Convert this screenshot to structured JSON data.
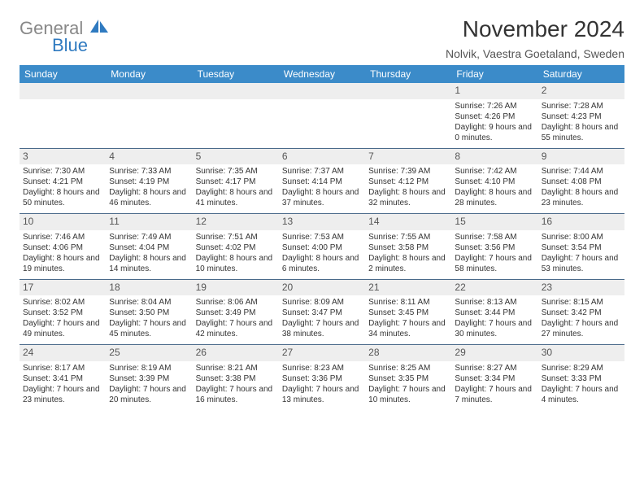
{
  "logo": {
    "general": "General",
    "blue": "Blue"
  },
  "header": {
    "title": "November 2024",
    "location": "Nolvik, Vaestra Goetaland, Sweden"
  },
  "colors": {
    "header_bg": "#3b8bc9",
    "header_text": "#ffffff",
    "daynum_bg": "#eeeeee",
    "border": "#4a6a8a",
    "logo_gray": "#888888",
    "logo_blue": "#2f7ac0"
  },
  "weekdays": [
    "Sunday",
    "Monday",
    "Tuesday",
    "Wednesday",
    "Thursday",
    "Friday",
    "Saturday"
  ],
  "weeks": [
    [
      null,
      null,
      null,
      null,
      null,
      {
        "n": "1",
        "sunrise": "7:26 AM",
        "sunset": "4:26 PM",
        "daylight": "9 hours and 0 minutes."
      },
      {
        "n": "2",
        "sunrise": "7:28 AM",
        "sunset": "4:23 PM",
        "daylight": "8 hours and 55 minutes."
      }
    ],
    [
      {
        "n": "3",
        "sunrise": "7:30 AM",
        "sunset": "4:21 PM",
        "daylight": "8 hours and 50 minutes."
      },
      {
        "n": "4",
        "sunrise": "7:33 AM",
        "sunset": "4:19 PM",
        "daylight": "8 hours and 46 minutes."
      },
      {
        "n": "5",
        "sunrise": "7:35 AM",
        "sunset": "4:17 PM",
        "daylight": "8 hours and 41 minutes."
      },
      {
        "n": "6",
        "sunrise": "7:37 AM",
        "sunset": "4:14 PM",
        "daylight": "8 hours and 37 minutes."
      },
      {
        "n": "7",
        "sunrise": "7:39 AM",
        "sunset": "4:12 PM",
        "daylight": "8 hours and 32 minutes."
      },
      {
        "n": "8",
        "sunrise": "7:42 AM",
        "sunset": "4:10 PM",
        "daylight": "8 hours and 28 minutes."
      },
      {
        "n": "9",
        "sunrise": "7:44 AM",
        "sunset": "4:08 PM",
        "daylight": "8 hours and 23 minutes."
      }
    ],
    [
      {
        "n": "10",
        "sunrise": "7:46 AM",
        "sunset": "4:06 PM",
        "daylight": "8 hours and 19 minutes."
      },
      {
        "n": "11",
        "sunrise": "7:49 AM",
        "sunset": "4:04 PM",
        "daylight": "8 hours and 14 minutes."
      },
      {
        "n": "12",
        "sunrise": "7:51 AM",
        "sunset": "4:02 PM",
        "daylight": "8 hours and 10 minutes."
      },
      {
        "n": "13",
        "sunrise": "7:53 AM",
        "sunset": "4:00 PM",
        "daylight": "8 hours and 6 minutes."
      },
      {
        "n": "14",
        "sunrise": "7:55 AM",
        "sunset": "3:58 PM",
        "daylight": "8 hours and 2 minutes."
      },
      {
        "n": "15",
        "sunrise": "7:58 AM",
        "sunset": "3:56 PM",
        "daylight": "7 hours and 58 minutes."
      },
      {
        "n": "16",
        "sunrise": "8:00 AM",
        "sunset": "3:54 PM",
        "daylight": "7 hours and 53 minutes."
      }
    ],
    [
      {
        "n": "17",
        "sunrise": "8:02 AM",
        "sunset": "3:52 PM",
        "daylight": "7 hours and 49 minutes."
      },
      {
        "n": "18",
        "sunrise": "8:04 AM",
        "sunset": "3:50 PM",
        "daylight": "7 hours and 45 minutes."
      },
      {
        "n": "19",
        "sunrise": "8:06 AM",
        "sunset": "3:49 PM",
        "daylight": "7 hours and 42 minutes."
      },
      {
        "n": "20",
        "sunrise": "8:09 AM",
        "sunset": "3:47 PM",
        "daylight": "7 hours and 38 minutes."
      },
      {
        "n": "21",
        "sunrise": "8:11 AM",
        "sunset": "3:45 PM",
        "daylight": "7 hours and 34 minutes."
      },
      {
        "n": "22",
        "sunrise": "8:13 AM",
        "sunset": "3:44 PM",
        "daylight": "7 hours and 30 minutes."
      },
      {
        "n": "23",
        "sunrise": "8:15 AM",
        "sunset": "3:42 PM",
        "daylight": "7 hours and 27 minutes."
      }
    ],
    [
      {
        "n": "24",
        "sunrise": "8:17 AM",
        "sunset": "3:41 PM",
        "daylight": "7 hours and 23 minutes."
      },
      {
        "n": "25",
        "sunrise": "8:19 AM",
        "sunset": "3:39 PM",
        "daylight": "7 hours and 20 minutes."
      },
      {
        "n": "26",
        "sunrise": "8:21 AM",
        "sunset": "3:38 PM",
        "daylight": "7 hours and 16 minutes."
      },
      {
        "n": "27",
        "sunrise": "8:23 AM",
        "sunset": "3:36 PM",
        "daylight": "7 hours and 13 minutes."
      },
      {
        "n": "28",
        "sunrise": "8:25 AM",
        "sunset": "3:35 PM",
        "daylight": "7 hours and 10 minutes."
      },
      {
        "n": "29",
        "sunrise": "8:27 AM",
        "sunset": "3:34 PM",
        "daylight": "7 hours and 7 minutes."
      },
      {
        "n": "30",
        "sunrise": "8:29 AM",
        "sunset": "3:33 PM",
        "daylight": "7 hours and 4 minutes."
      }
    ]
  ],
  "labels": {
    "sunrise": "Sunrise:",
    "sunset": "Sunset:",
    "daylight": "Daylight:"
  }
}
